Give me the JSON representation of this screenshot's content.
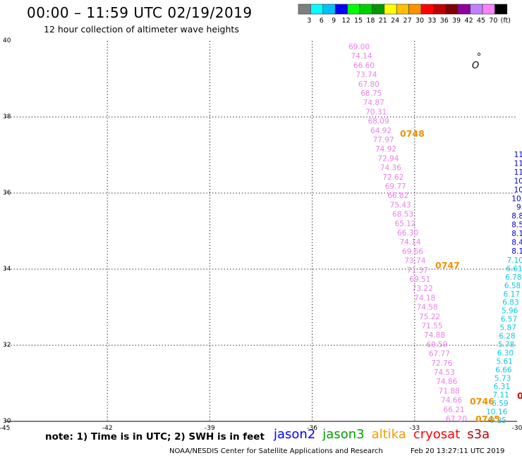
{
  "header": {
    "title": "00:00 – 11:59 UTC 02/19/2019",
    "subtitle": "12 hour collection of altimeter wave heights"
  },
  "colorbar": {
    "colors": [
      "#7f7f7f",
      "#00ffff",
      "#00bfff",
      "#0000ff",
      "#00ff00",
      "#00d000",
      "#009800",
      "#ffff00",
      "#ffc000",
      "#ff9000",
      "#ff0000",
      "#c00000",
      "#800000",
      "#9000a0",
      "#c080ff",
      "#ff80ff",
      "#000000"
    ],
    "labels": [
      "3",
      "6",
      "9",
      "12",
      "15",
      "18",
      "21",
      "24",
      "27",
      "30",
      "33",
      "36",
      "39",
      "42",
      "45",
      "70",
      "(ft)"
    ]
  },
  "map": {
    "lon_range": [
      -45,
      -30
    ],
    "lat_range": [
      30,
      40
    ],
    "lon_ticks": [
      "-45",
      "-42",
      "-39",
      "-36",
      "-33",
      "-30"
    ],
    "lat_ticks": [
      "30",
      "32",
      "34",
      "36",
      "38",
      "40"
    ],
    "grid_lines": true,
    "tracks": [
      {
        "mission": "s3a",
        "color": "#e882e8",
        "values": [
          "69.00",
          "74.14",
          "66.60",
          "73.74",
          "67.80",
          "68.75",
          "74.87",
          "70.31",
          "68.09",
          "64.92",
          "77.97",
          "74.92",
          "72.94",
          "74.36",
          "72.62",
          "69.77",
          "66.82",
          "75.43",
          "68.53",
          "65.12",
          "66.30",
          "74.14",
          "69.66",
          "73.74",
          "71.37",
          "69.51",
          "73.22",
          "74.18",
          "74.58",
          "75.22",
          "71.55",
          "74.88",
          "69.59",
          "67.77",
          "72.76",
          "74.53",
          "74.86",
          "71.88",
          "74.66",
          "66.21",
          "67.20"
        ]
      },
      {
        "mission": "altika",
        "color": "#0000cc",
        "values": [
          "11",
          "11",
          "11",
          "10",
          "10",
          "10.",
          "9.",
          "8.8",
          "8.5",
          "8.1",
          "8.4",
          "8.1"
        ]
      },
      {
        "mission": "altika",
        "color": "#10c8e8",
        "values": [
          "7.10",
          "6.61",
          "6.78",
          "6.58",
          "6.17",
          "6.83",
          "5.96",
          "6.57",
          "5.87",
          "6.28",
          "5.78",
          "6.30",
          "5.61",
          "6.66",
          "5.73",
          "6.31",
          "7.11",
          "6.59",
          "10.16",
          "9.25"
        ]
      }
    ],
    "time_labels": [
      {
        "text": "0748",
        "color": "#f09000"
      },
      {
        "text": "0747",
        "color": "#f09000"
      },
      {
        "text": "0746",
        "color": "#f09000"
      },
      {
        "text": "0745",
        "color": "#f09000"
      },
      {
        "text": "0",
        "color": "#e00000"
      }
    ],
    "island_label": "O"
  },
  "footer": {
    "note": "note: 1) Time is in UTC; 2) SWH is in feet",
    "legend": [
      {
        "name": "jason2",
        "color": "#0000ff"
      },
      {
        "name": "jason3",
        "color": "#00a000"
      },
      {
        "name": "altika",
        "color": "#f0a000"
      },
      {
        "name": "cryosat",
        "color": "#ff0000"
      },
      {
        "name": "s3a",
        "color": "#c00000"
      }
    ],
    "credit": "NOAA/NESDIS Center for Satellite Applications and Research",
    "timestamp": "Feb 20 13:27:11 UTC 2019"
  }
}
